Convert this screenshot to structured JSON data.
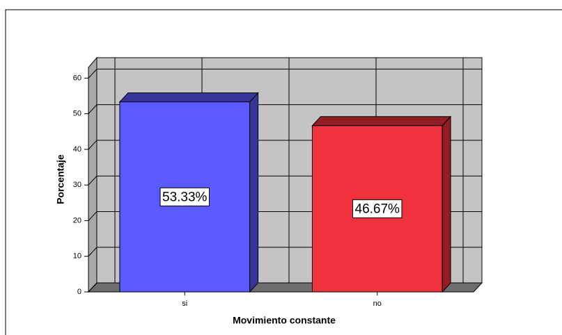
{
  "chart_data": {
    "type": "bar3d",
    "categories": [
      "si",
      "no"
    ],
    "values": [
      53.33,
      46.67
    ],
    "value_labels": [
      "53.33%",
      "46.67%"
    ],
    "colors": [
      "#5a5aff",
      "#f0323c"
    ],
    "xlabel": "Movimiento constante",
    "ylabel": "Porcentaje",
    "ylim": [
      0,
      63
    ],
    "yticks": [
      0,
      10,
      20,
      30,
      40,
      50,
      60
    ],
    "grid": true
  }
}
